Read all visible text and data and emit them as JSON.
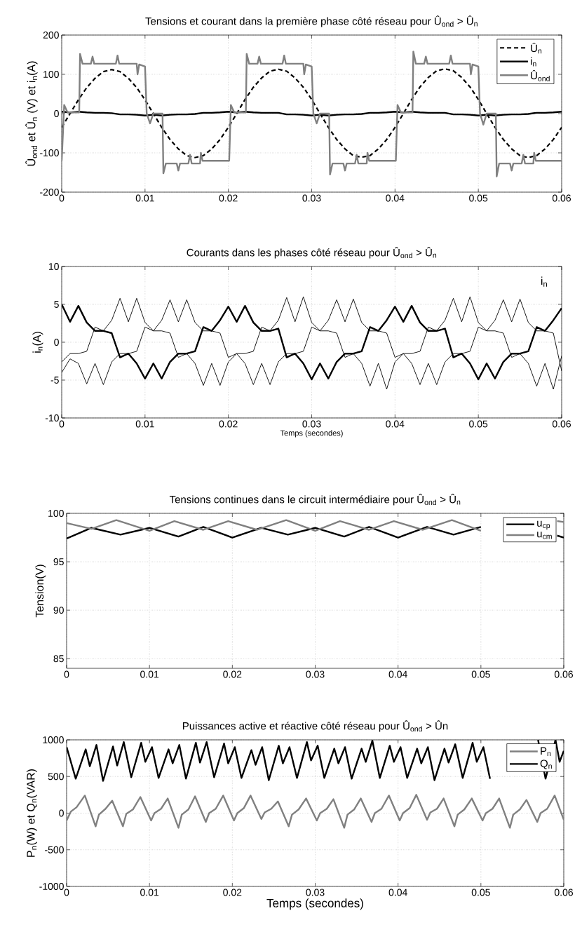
{
  "chart_data": [
    {
      "type": "line",
      "title": "Tensions et courant dans la première phase côté réseau pour Û$_{ond}$ > Û$_{n}$",
      "ylabel": "Û$_{ond}$ et Û$_{n}$ (V) et i$_{n}$(A)",
      "xlim": [
        0,
        0.06
      ],
      "ylim": [
        -200,
        200
      ],
      "xticks": [
        0,
        0.01,
        0.02,
        0.03,
        0.04,
        0.05,
        0.06
      ],
      "yticks": [
        -200,
        -100,
        0,
        100,
        200
      ],
      "grid": true,
      "legend": "top right",
      "x": [
        0,
        0.001,
        0.002,
        0.003,
        0.004,
        0.005,
        0.006,
        0.007,
        0.008,
        0.009,
        0.01,
        0.011,
        0.012,
        0.013,
        0.014,
        0.015,
        0.016,
        0.017,
        0.018,
        0.019,
        0.02,
        0.021,
        0.022,
        0.023,
        0.024,
        0.025,
        0.026,
        0.027,
        0.028,
        0.029,
        0.03,
        0.031,
        0.032,
        0.033,
        0.034,
        0.035,
        0.036,
        0.037,
        0.038,
        0.039,
        0.04,
        0.041,
        0.042,
        0.043,
        0.044,
        0.045,
        0.046,
        0.047,
        0.048,
        0.049,
        0.05,
        0.051,
        0.052,
        0.053,
        0.054,
        0.055,
        0.056,
        0.057,
        0.058,
        0.059,
        0.06
      ],
      "series": [
        {
          "name": "Û$_{n}$",
          "color": "#000000",
          "line_style": "dashed",
          "values": [
            -35,
            0,
            35,
            66,
            90,
            107,
            112,
            107,
            90,
            66,
            35,
            0,
            -35,
            -66,
            -90,
            -107,
            -112,
            -107,
            -90,
            -66,
            -35,
            0,
            36,
            67,
            91,
            108,
            113,
            108,
            91,
            67,
            36,
            0,
            -35,
            -66,
            -90,
            -107,
            -111,
            -107,
            -90,
            -66,
            -35,
            0,
            36,
            68,
            92,
            109,
            114,
            109,
            92,
            68,
            36,
            0,
            -35,
            -66,
            -90,
            -107,
            -112,
            -107,
            -90,
            -66,
            -35
          ]
        },
        {
          "name": "i$_{n}$",
          "color": "#000000",
          "values": [
            5,
            3,
            5,
            3,
            2,
            2,
            1,
            -2,
            -2,
            -3,
            -5,
            -3,
            -5,
            -3,
            -2,
            -2,
            -1,
            2,
            2,
            3,
            5,
            3,
            5,
            3,
            2,
            2,
            2,
            -2,
            -2,
            -3,
            -5,
            -3,
            -5,
            -3,
            -2,
            -2,
            -1,
            2,
            2,
            3,
            5,
            3,
            5,
            3,
            2,
            2,
            2,
            -2,
            -2,
            -3,
            -5,
            -3,
            -5,
            -3,
            -2,
            -2,
            -1,
            2,
            2,
            3,
            5
          ]
        },
        {
          "name": "Û$_{ond}$",
          "color": "#808080",
          "x": [
            0,
            0.0003,
            0.0007,
            0.0021,
            0.0022,
            0.0025,
            0.0035,
            0.0037,
            0.0039,
            0.0065,
            0.0067,
            0.0069,
            0.009,
            0.0091,
            0.0093,
            0.01,
            0.0102,
            0.0106,
            0.011,
            0.0121,
            0.0122,
            0.0125,
            0.0138,
            0.014,
            0.0142,
            0.0152,
            0.0154,
            0.0156,
            0.0166,
            0.0167,
            0.0169,
            0.0199,
            0.0201,
            0.0203,
            0.0207,
            0.0221,
            0.0222,
            0.0225,
            0.0235,
            0.0237,
            0.0239,
            0.0265,
            0.0267,
            0.0269,
            0.029,
            0.0291,
            0.0293,
            0.03,
            0.0302,
            0.0306,
            0.031,
            0.0321,
            0.0322,
            0.0325,
            0.0338,
            0.034,
            0.0342,
            0.0352,
            0.0354,
            0.0356,
            0.0366,
            0.0367,
            0.0369,
            0.0399,
            0.0401,
            0.0403,
            0.0407,
            0.0421,
            0.0422,
            0.0425,
            0.0435,
            0.0437,
            0.0439,
            0.0465,
            0.0467,
            0.0469,
            0.049,
            0.0491,
            0.0493,
            0.05,
            0.0502,
            0.0506,
            0.051,
            0.0521,
            0.0522,
            0.0525,
            0.0538,
            0.054,
            0.0542,
            0.0552,
            0.0554,
            0.0556,
            0.0566,
            0.0567,
            0.0569,
            0.0599,
            0.06
          ],
          "values": [
            -120,
            22,
            3,
            3,
            152,
            127,
            127,
            145,
            127,
            127,
            148,
            127,
            127,
            100,
            125,
            120,
            0,
            -25,
            0,
            0,
            -152,
            -127,
            -127,
            -145,
            -127,
            -127,
            -105,
            -127,
            -127,
            -100,
            -120,
            -120,
            -120,
            22,
            3,
            3,
            152,
            127,
            127,
            145,
            127,
            127,
            148,
            127,
            127,
            100,
            125,
            120,
            0,
            -25,
            0,
            0,
            -155,
            -127,
            -127,
            -145,
            -127,
            -127,
            -105,
            -127,
            -127,
            -100,
            -120,
            -120,
            -120,
            22,
            3,
            3,
            158,
            127,
            127,
            145,
            127,
            127,
            148,
            127,
            127,
            100,
            125,
            120,
            0,
            -28,
            0,
            0,
            -160,
            -127,
            -127,
            -145,
            -127,
            -127,
            -105,
            -127,
            -127,
            -100,
            -120,
            -120,
            -120
          ]
        }
      ]
    },
    {
      "type": "line",
      "title": "Courants dans les phases côté réseau pour Û$_{ond}$ > Û$_{n}$",
      "xlabel": "Temps (secondes)",
      "ylabel": "i$_{n}$(A)",
      "annotations": [
        "i$_{n}$"
      ],
      "xlim": [
        0,
        0.06
      ],
      "ylim": [
        -10,
        10
      ],
      "xticks": [
        0,
        0.01,
        0.02,
        0.03,
        0.04,
        0.05,
        0.06
      ],
      "yticks": [
        -10,
        -5,
        0,
        5,
        10
      ],
      "grid": true,
      "x": [
        0,
        0.001,
        0.002,
        0.003,
        0.004,
        0.005,
        0.006,
        0.007,
        0.008,
        0.009,
        0.01,
        0.011,
        0.012,
        0.013,
        0.014,
        0.015,
        0.016,
        0.017,
        0.018,
        0.019,
        0.02,
        0.021,
        0.022,
        0.023,
        0.024,
        0.025,
        0.026,
        0.027,
        0.028,
        0.029,
        0.03,
        0.031,
        0.032,
        0.033,
        0.034,
        0.035,
        0.036,
        0.037,
        0.038,
        0.039,
        0.04,
        0.041,
        0.042,
        0.043,
        0.044,
        0.045,
        0.046,
        0.047,
        0.048,
        0.049,
        0.05,
        0.051,
        0.052,
        0.053,
        0.054,
        0.055,
        0.056,
        0.057,
        0.058,
        0.059,
        0.06
      ],
      "series": [
        {
          "color": "#000000",
          "values": [
            5,
            2.7,
            4.8,
            2.6,
            1.5,
            1.5,
            1.2,
            -2,
            -1.5,
            -2.8,
            -4.8,
            -2.8,
            -4.8,
            -2.6,
            -1.5,
            -1.5,
            -1.2,
            2,
            1.5,
            2.9,
            4.7,
            2.7,
            4.8,
            2.6,
            1.5,
            1.5,
            1.8,
            -2,
            -1.5,
            -2.8,
            -4.9,
            -2.8,
            -4.8,
            -2.6,
            -1.5,
            -1.5,
            -1.2,
            2,
            1.5,
            2.9,
            4.7,
            2.7,
            4.8,
            2.6,
            1.5,
            1.5,
            1.8,
            -2,
            -1.5,
            -2.8,
            -4.9,
            -2.8,
            -4.8,
            -2.6,
            -1.5,
            -1.5,
            -1.2,
            2,
            1.5,
            2.9,
            4.5
          ]
        },
        {
          "color": "#000000",
          "values": [
            -2.6,
            -1.5,
            -1.5,
            -1.2,
            2,
            1.5,
            2.9,
            5.8,
            2.7,
            5.8,
            2.6,
            1.5,
            1.5,
            1.2,
            -2,
            -1.5,
            -2.8,
            -5.7,
            -2.8,
            -5.7,
            -2.6,
            -1.5,
            -1.5,
            -1.2,
            2,
            1.5,
            2.9,
            5.9,
            2.7,
            6,
            2.6,
            1.5,
            1.5,
            1.2,
            -2,
            -1.5,
            -2.8,
            -5.8,
            -2.8,
            -6.2,
            -2.6,
            -1.5,
            -1.5,
            -1.2,
            2,
            1.5,
            2.9,
            5.8,
            2.7,
            6,
            2.6,
            1.5,
            1.5,
            1.2,
            -2,
            -1.5,
            -2.8,
            -5.8,
            -2.8,
            -6.2,
            -1.8
          ]
        },
        {
          "color": "#000000",
          "values": [
            -4,
            -2.2,
            -2.8,
            -5.5,
            -2.8,
            -5.6,
            -2.6,
            -1.5,
            -1.5,
            -1.2,
            2,
            1.5,
            2.9,
            5.6,
            2.7,
            5.6,
            2.6,
            1.5,
            1.5,
            1.2,
            -2,
            -1.5,
            -2.8,
            -5.6,
            -2.8,
            -5.6,
            -2.6,
            -1.5,
            -1.5,
            -1.2,
            2,
            1.5,
            2.9,
            5.6,
            2.7,
            5.7,
            2.6,
            1.5,
            1.5,
            1.2,
            -2,
            -1.5,
            -2.8,
            -5.6,
            -2.8,
            -5.6,
            -2.6,
            -1.5,
            -1.5,
            -1.2,
            2,
            1.5,
            2.9,
            5.6,
            2.7,
            5.7,
            2.6,
            1.5,
            1.5,
            1.2,
            -3.8
          ]
        }
      ]
    },
    {
      "type": "line",
      "title": "Tensions continues dans le circuit intermédiaire pour Û$_{ond}$ > Û$_{n}$",
      "ylabel": "Tension(V)",
      "xlim": [
        0,
        0.06
      ],
      "ylim": [
        84,
        100
      ],
      "xticks": [
        0,
        0.01,
        0.02,
        0.03,
        0.04,
        0.05,
        0.06
      ],
      "yticks": [
        85,
        90,
        95,
        100
      ],
      "grid": true,
      "legend": "top right",
      "series": [
        {
          "name": "u$_{cp}$",
          "color": "#000000",
          "x": [
            0,
            0.003,
            0.0065,
            0.01,
            0.0135,
            0.0165,
            0.02,
            0.0235,
            0.0267,
            0.03,
            0.0335,
            0.0365,
            0.04,
            0.0435,
            0.0467,
            0.05,
            0.0535,
            0.0592,
            0.06
          ],
          "values": [
            97.4,
            98.5,
            97.8,
            98.5,
            97.6,
            98.6,
            97.5,
            98.5,
            97.8,
            98.5,
            97.6,
            98.6,
            97.5,
            98.6,
            97.8,
            98.6,
            null,
            97.7,
            97.5
          ]
        },
        {
          "name": "u$_{cm}$",
          "color": "#808080",
          "x": [
            0,
            0.003,
            0.006,
            0.01,
            0.013,
            0.0165,
            0.0195,
            0.023,
            0.0265,
            0.03,
            0.033,
            0.0365,
            0.0395,
            0.043,
            0.0465,
            0.05,
            0.053,
            0.0592,
            0.06
          ],
          "values": [
            99.0,
            98.4,
            99.3,
            98.2,
            99.2,
            98.3,
            99.2,
            98.3,
            99.3,
            98.2,
            99.2,
            98.3,
            99.2,
            98.3,
            99.3,
            98.2,
            null,
            99.2,
            99.1
          ]
        }
      ]
    },
    {
      "type": "line",
      "title": "Puissances active et réactive côté réseau pour Û$_{ond}$ > Ûn",
      "xlabel": "Temps (secondes)",
      "ylabel": "P$_{n}$(W) et Q$_{n}$(VAR)",
      "xlim": [
        0,
        0.06
      ],
      "ylim": [
        -1000,
        1000
      ],
      "xticks": [
        0,
        0.01,
        0.02,
        0.03,
        0.04,
        0.05,
        0.06
      ],
      "yticks": [
        -1000,
        -500,
        0,
        500,
        1000
      ],
      "grid": true,
      "legend": "top right",
      "series": [
        {
          "name": "P$_{n}$",
          "color": "#808080",
          "x": [
            0,
            0.0005,
            0.0012,
            0.0022,
            0.0035,
            0.0039,
            0.0047,
            0.0055,
            0.0068,
            0.0072,
            0.008,
            0.0089,
            0.0102,
            0.0106,
            0.0114,
            0.0122,
            0.0135,
            0.0139,
            0.0147,
            0.0155,
            0.0168,
            0.0172,
            0.018,
            0.0189,
            0.0202,
            0.0206,
            0.0214,
            0.0222,
            0.0235,
            0.0239,
            0.0247,
            0.0255,
            0.0268,
            0.0272,
            0.028,
            0.0289,
            0.0302,
            0.0306,
            0.0314,
            0.0322,
            0.0335,
            0.0339,
            0.0347,
            0.0355,
            0.0368,
            0.0372,
            0.038,
            0.0389,
            0.0402,
            0.0406,
            0.0414,
            0.0422,
            0.0435,
            0.0439,
            0.0447,
            0.0455,
            0.0468,
            0.0472,
            0.048,
            0.0489,
            0.0502,
            0.0506,
            0.0514,
            0.0522,
            0.0535,
            0.0539,
            0.0547,
            0.0555,
            0.0568,
            0.0572,
            0.058,
            0.0589,
            0.06
          ],
          "values": [
            -100,
            20,
            80,
            240,
            -180,
            -20,
            60,
            170,
            -180,
            -10,
            50,
            220,
            -100,
            0,
            60,
            200,
            -200,
            -20,
            50,
            230,
            -120,
            0,
            60,
            240,
            -100,
            0,
            70,
            240,
            -80,
            10,
            60,
            160,
            -180,
            -20,
            50,
            200,
            -100,
            0,
            60,
            190,
            -200,
            -20,
            50,
            200,
            -120,
            0,
            60,
            240,
            -100,
            0,
            70,
            250,
            -90,
            10,
            60,
            200,
            -180,
            -20,
            50,
            200,
            -100,
            0,
            60,
            200,
            -200,
            -20,
            50,
            180,
            -120,
            0,
            60,
            240,
            -90
          ]
        },
        {
          "name": "Q$_{n}$",
          "color": "#000000",
          "x": [
            0,
            0.0011,
            0.0023,
            0.0028,
            0.0036,
            0.0044,
            0.0056,
            0.0061,
            0.0069,
            0.0078,
            0.009,
            0.0095,
            0.0103,
            0.0111,
            0.0123,
            0.0128,
            0.0136,
            0.0144,
            0.0156,
            0.0161,
            0.0169,
            0.0178,
            0.019,
            0.0195,
            0.0203,
            0.0211,
            0.0223,
            0.0228,
            0.0236,
            0.0244,
            0.0256,
            0.0261,
            0.0269,
            0.0278,
            0.029,
            0.0295,
            0.0303,
            0.0311,
            0.0323,
            0.0328,
            0.0336,
            0.0344,
            0.0356,
            0.0361,
            0.0369,
            0.0378,
            0.039,
            0.0395,
            0.0403,
            0.0411,
            0.0423,
            0.0428,
            0.0436,
            0.0444,
            0.0456,
            0.0461,
            0.0469,
            0.0478,
            0.049,
            0.0495,
            0.0503,
            0.0511,
            0.0523,
            0.0528,
            0.0536,
            0.0544,
            0.0556,
            0.0561,
            0.0569,
            0.0578,
            0.059,
            0.0595,
            0.06
          ],
          "values": [
            900,
            470,
            870,
            640,
            930,
            440,
            910,
            650,
            970,
            490,
            960,
            700,
            900,
            480,
            870,
            680,
            930,
            470,
            960,
            690,
            970,
            490,
            950,
            680,
            900,
            480,
            860,
            660,
            900,
            450,
            920,
            680,
            900,
            480,
            970,
            720,
            920,
            480,
            880,
            680,
            900,
            470,
            880,
            700,
            990,
            480,
            920,
            700,
            900,
            480,
            880,
            680,
            900,
            450,
            880,
            690,
            940,
            480,
            960,
            700,
            900,
            470,
            null,
            null,
            null,
            null,
            null,
            null,
            1000,
            470,
            1000,
            700,
            850
          ]
        }
      ]
    }
  ]
}
